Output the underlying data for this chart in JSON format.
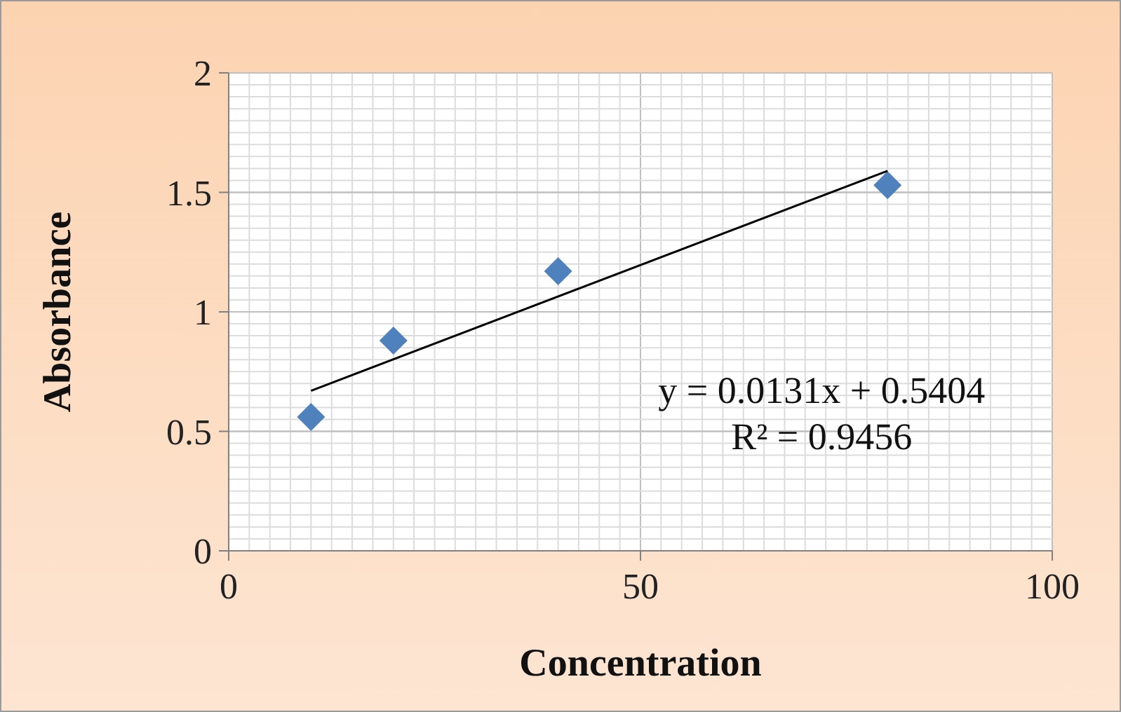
{
  "chart_data": {
    "type": "scatter",
    "xlabel": "Concentration",
    "ylabel": "Absorbance",
    "xlim": [
      0,
      100
    ],
    "xticks": [
      0,
      50,
      100
    ],
    "ylim": [
      0,
      2
    ],
    "yticks": [
      0,
      0.5,
      1,
      1.5,
      2
    ],
    "grid": true,
    "marker": "diamond",
    "series": [
      {
        "type": "scatter",
        "color": "#4f81bd",
        "x": [
          10,
          20,
          40,
          80
        ],
        "values": [
          0.56,
          0.88,
          1.17,
          1.53
        ]
      },
      {
        "type": "line",
        "color": "#000000",
        "x": [
          10,
          80
        ],
        "values": [
          0.67,
          1.59
        ],
        "marker": "none",
        "line_style": "solid"
      }
    ],
    "annotations": [
      "y = 0.0131x + 0.5404",
      "R² = 0.9456"
    ]
  }
}
